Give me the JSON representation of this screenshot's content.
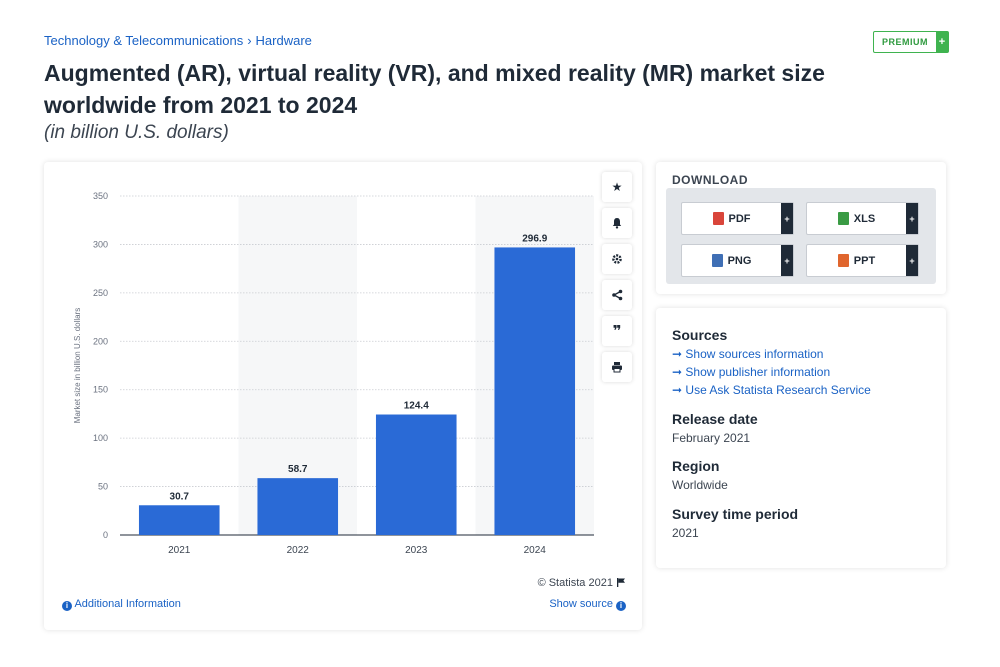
{
  "breadcrumb": {
    "category": "Technology & Telecommunications",
    "separator": "›",
    "subcategory": "Hardware"
  },
  "premium": {
    "label": "PREMIUM",
    "plus": "+"
  },
  "title": "Augmented (AR), virtual reality (VR), and mixed reality (MR) market size worldwide from 2021 to 2024",
  "subtitle": "(in billion U.S. dollars)",
  "chart_data": {
    "type": "bar",
    "categories": [
      "2021",
      "2022",
      "2023",
      "2024"
    ],
    "values": [
      30.7,
      58.7,
      124.4,
      296.9
    ],
    "data_labels": [
      "30.7",
      "58.7",
      "124.4",
      "296.9"
    ],
    "xlabel": "",
    "ylabel": "Market size in billion U.S. dollars",
    "ylim": [
      0,
      350
    ],
    "yticks": [
      0,
      50,
      100,
      150,
      200,
      250,
      300,
      350
    ],
    "grid": true,
    "bar_color": "#2a6ad6",
    "legend": "none"
  },
  "chart_footer": {
    "copyright": "© Statista 2021",
    "additional_info": "Additional Information",
    "show_source": "Show source"
  },
  "toolbar": [
    "star-icon",
    "bell-icon",
    "gear-icon",
    "share-icon",
    "quote-icon",
    "print-icon"
  ],
  "download": {
    "heading": "DOWNLOAD",
    "buttons": [
      {
        "label": "PDF",
        "color": "#d9453a"
      },
      {
        "label": "XLS",
        "color": "#3a9b44"
      },
      {
        "label": "PNG",
        "color": "#3f6fb5"
      },
      {
        "label": "PPT",
        "color": "#e0662e"
      }
    ],
    "plus": "+"
  },
  "sources": {
    "heading": "Sources",
    "arrow": "➞",
    "links": [
      "Show sources information",
      "Show publisher information",
      "Use Ask Statista Research Service"
    ]
  },
  "release": {
    "heading": "Release date",
    "value": "February 2021"
  },
  "region": {
    "heading": "Region",
    "value": "Worldwide"
  },
  "survey": {
    "heading": "Survey time period",
    "value": "2021"
  },
  "colors": {
    "accent": "#1a62c5",
    "premium": "#3fb34f",
    "bar": "#2a6ad6"
  }
}
